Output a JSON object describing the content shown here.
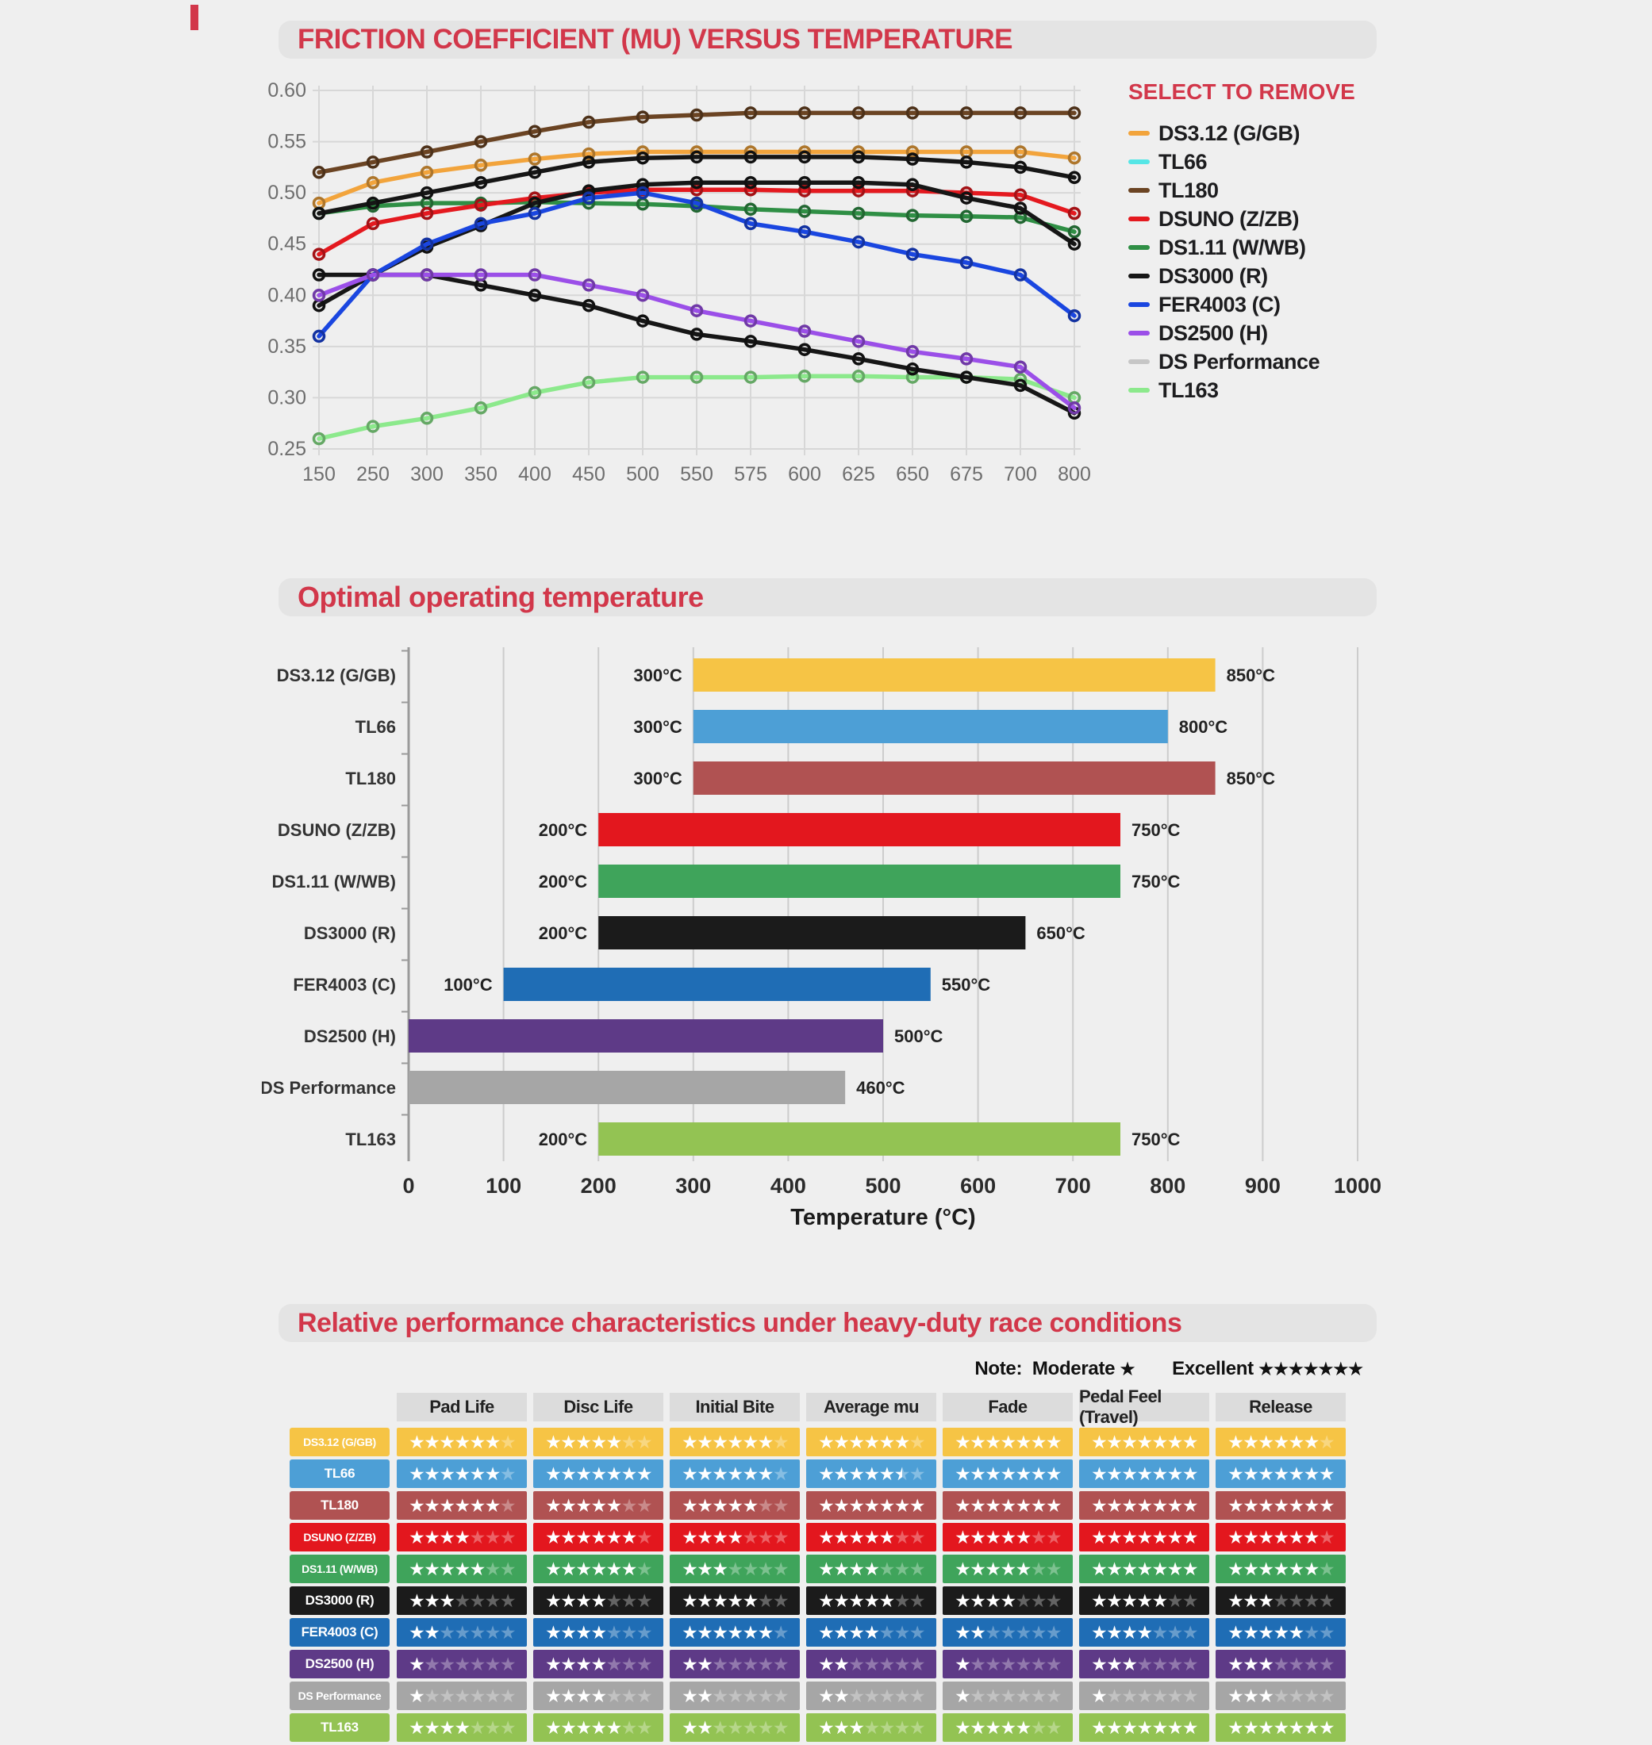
{
  "section1": {
    "title": "FRICTION COEFFICIENT (MU) VERSUS TEMPERATURE",
    "legend_title": "SELECT TO REMOVE"
  },
  "section2": {
    "title": "Optimal operating temperature"
  },
  "section3": {
    "title": "Relative performance characteristics under heavy-duty race conditions",
    "note": {
      "label": "Note:",
      "moderate_label": "Moderate",
      "moderate_stars": 1,
      "excellent_label": "Excellent",
      "excellent_stars": 7
    }
  },
  "chart_data": [
    {
      "type": "line",
      "title": "Friction coefficient (mu) versus temperature",
      "x_labels": [
        "150",
        "250",
        "300",
        "350",
        "400",
        "450",
        "500",
        "550",
        "575",
        "600",
        "625",
        "650",
        "675",
        "700",
        "800"
      ],
      "ylim": [
        0.25,
        0.6
      ],
      "y_ticks": [
        "0.25",
        "0.30",
        "0.35",
        "0.40",
        "0.45",
        "0.50",
        "0.55",
        "0.60"
      ],
      "grid": true,
      "legend_position": "right",
      "series": [
        {
          "name": "DS3.12 (G/GB)",
          "line_color": "#F2A43C",
          "legend_color": "#F2A43C",
          "values": [
            0.49,
            0.51,
            0.52,
            0.527,
            0.533,
            0.538,
            0.54,
            0.54,
            0.54,
            0.54,
            0.54,
            0.54,
            0.54,
            0.54,
            0.534
          ]
        },
        {
          "name": "TL66",
          "line_color": "#161616",
          "legend_color": "#55E6E6",
          "values": [
            0.48,
            0.49,
            0.5,
            0.51,
            0.52,
            0.53,
            0.534,
            0.535,
            0.535,
            0.535,
            0.535,
            0.533,
            0.53,
            0.525,
            0.515
          ]
        },
        {
          "name": "TL180",
          "line_color": "#6B4423",
          "legend_color": "#6B4423",
          "values": [
            0.52,
            0.53,
            0.54,
            0.55,
            0.56,
            0.569,
            0.574,
            0.576,
            0.578,
            0.578,
            0.578,
            0.578,
            0.578,
            0.578,
            0.578
          ]
        },
        {
          "name": "DSUNO (Z/ZB)",
          "line_color": "#E4191F",
          "legend_color": "#E4191F",
          "values": [
            0.44,
            0.47,
            0.48,
            0.488,
            0.495,
            0.5,
            0.503,
            0.503,
            0.503,
            0.502,
            0.502,
            0.502,
            0.5,
            0.498,
            0.48
          ]
        },
        {
          "name": "DS1.11 (W/WB)",
          "line_color": "#2F8F45",
          "legend_color": "#2F8F45",
          "values": [
            0.48,
            0.487,
            0.49,
            0.49,
            0.491,
            0.49,
            0.489,
            0.487,
            0.484,
            0.482,
            0.48,
            0.478,
            0.477,
            0.476,
            0.462
          ]
        },
        {
          "name": "DS3000 (R)",
          "line_color": "#161616",
          "legend_color": "#161616",
          "values": [
            0.39,
            0.42,
            0.447,
            0.468,
            0.49,
            0.502,
            0.508,
            0.51,
            0.51,
            0.51,
            0.51,
            0.508,
            0.495,
            0.485,
            0.45
          ]
        },
        {
          "name": "FER4003 (C)",
          "line_color": "#1A46E0",
          "legend_color": "#1A46E0",
          "values": [
            0.36,
            0.42,
            0.45,
            0.47,
            0.48,
            0.495,
            0.5,
            0.49,
            0.47,
            0.462,
            0.452,
            0.44,
            0.432,
            0.42,
            0.38
          ]
        },
        {
          "name": "DS2500 (H)",
          "line_color": "#9B4FE8",
          "legend_color": "#9B4FE8",
          "values": [
            0.4,
            0.42,
            0.42,
            0.42,
            0.42,
            0.41,
            0.4,
            0.385,
            0.375,
            0.365,
            0.355,
            0.345,
            0.338,
            0.33,
            0.29
          ]
        },
        {
          "name": "DS Performance",
          "line_color": "#161616",
          "legend_color": "#C6C6C6",
          "values": [
            0.42,
            0.42,
            0.42,
            0.41,
            0.4,
            0.39,
            0.375,
            0.362,
            0.355,
            0.347,
            0.338,
            0.328,
            0.32,
            0.312,
            0.285
          ]
        },
        {
          "name": "TL163",
          "line_color": "#8CE98C",
          "legend_color": "#8CE98C",
          "values": [
            0.26,
            0.272,
            0.28,
            0.29,
            0.305,
            0.315,
            0.32,
            0.32,
            0.32,
            0.321,
            0.321,
            0.32,
            0.32,
            0.318,
            0.3
          ]
        }
      ]
    },
    {
      "type": "bar",
      "title": "Optimal operating temperature",
      "orientation": "horizontal",
      "xlabel": "Temperature (°C)",
      "xlim": [
        0,
        1000
      ],
      "x_ticks": [
        0,
        100,
        200,
        300,
        400,
        500,
        600,
        700,
        800,
        900,
        1000
      ],
      "unit": "°C",
      "categories": [
        "DS3.12 (G/GB)",
        "TL66",
        "TL180",
        "DSUNO (Z/ZB)",
        "DS1.11 (W/WB)",
        "DS3000 (R)",
        "FER4003 (C)",
        "DS2500 (H)",
        "DS Performance",
        "TL163"
      ],
      "ranges": [
        {
          "start": 300,
          "end": 850,
          "start_label": "300°C",
          "end_label": "850°C",
          "color": "#F6C445"
        },
        {
          "start": 300,
          "end": 800,
          "start_label": "300°C",
          "end_label": "800°C",
          "color": "#4D9FD6"
        },
        {
          "start": 300,
          "end": 850,
          "start_label": "300°C",
          "end_label": "850°C",
          "color": "#B05252"
        },
        {
          "start": 200,
          "end": 750,
          "start_label": "200°C",
          "end_label": "750°C",
          "color": "#E3171E"
        },
        {
          "start": 200,
          "end": 750,
          "start_label": "200°C",
          "end_label": "750°C",
          "color": "#3FA45B"
        },
        {
          "start": 200,
          "end": 650,
          "start_label": "200°C",
          "end_label": "650°C",
          "color": "#1B1B1B"
        },
        {
          "start": 100,
          "end": 550,
          "start_label": "100°C",
          "end_label": "550°C",
          "color": "#1F6DB5"
        },
        {
          "start": 0,
          "end": 500,
          "start_label": "",
          "end_label": "500°C",
          "color": "#5E3A87"
        },
        {
          "start": 0,
          "end": 460,
          "start_label": "",
          "end_label": "460°C",
          "color": "#A6A6A6"
        },
        {
          "start": 200,
          "end": 750,
          "start_label": "200°C",
          "end_label": "750°C",
          "color": "#93C353"
        }
      ]
    },
    {
      "type": "table",
      "title": "Relative performance characteristics under heavy-duty race conditions",
      "rating_max": 7,
      "columns": [
        "Pad Life",
        "Disc Life",
        "Initial Bite",
        "Average mu",
        "Fade",
        "Pedal Feel (Travel)",
        "Release"
      ],
      "rows": [
        {
          "name": "DS3.12 (G/GB)",
          "color": "#F6C445",
          "ratings": [
            6,
            5,
            6,
            6,
            7,
            7,
            6
          ]
        },
        {
          "name": "TL66",
          "color": "#4D9FD6",
          "ratings": [
            6,
            7,
            6,
            5.5,
            7,
            7,
            7
          ]
        },
        {
          "name": "TL180",
          "color": "#B05252",
          "ratings": [
            6,
            5,
            5,
            7,
            7,
            7,
            7
          ]
        },
        {
          "name": "DSUNO (Z/ZB)",
          "color": "#E3171E",
          "ratings": [
            4,
            6,
            4,
            5,
            5,
            7,
            6
          ]
        },
        {
          "name": "DS1.11 (W/WB)",
          "color": "#3FA45B",
          "ratings": [
            5,
            6,
            3,
            4,
            5,
            7,
            6
          ]
        },
        {
          "name": "DS3000 (R)",
          "color": "#1B1B1B",
          "ratings": [
            3,
            4,
            5,
            5,
            4,
            5,
            3
          ]
        },
        {
          "name": "FER4003 (C)",
          "color": "#1F6DB5",
          "ratings": [
            2,
            4,
            6,
            4,
            2,
            4,
            5
          ]
        },
        {
          "name": "DS2500 (H)",
          "color": "#5E3A87",
          "ratings": [
            1,
            4,
            2,
            2,
            1,
            3,
            3
          ]
        },
        {
          "name": "DS Performance",
          "color": "#A6A6A6",
          "ratings": [
            1,
            4,
            2,
            2,
            1,
            1,
            3
          ]
        },
        {
          "name": "TL163",
          "color": "#93C353",
          "ratings": [
            4,
            5,
            2,
            3,
            5,
            7,
            7
          ]
        }
      ]
    }
  ]
}
